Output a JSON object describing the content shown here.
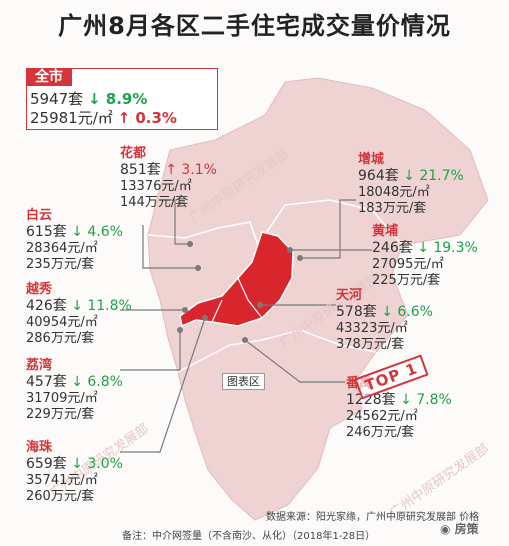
{
  "title": "广州8月各区二手住宅成交量价情况",
  "whole_city": {
    "name": "全市",
    "volume": "5947套",
    "volume_change": "↓ 8.9%",
    "price": "25981元/㎡",
    "price_change": "↑ 0.3%"
  },
  "districts": [
    {
      "key": "huadu",
      "name": "花都",
      "volume": "851套",
      "change": "↑ 3.1%",
      "price": "13376元/㎡",
      "total": "144万元/套"
    },
    {
      "key": "zengcheng",
      "name": "增城",
      "volume": "964套",
      "change": "↓ 21.7%",
      "price": "18048元/㎡",
      "total": "183万元/套"
    },
    {
      "key": "baiyun",
      "name": "白云",
      "volume": "615套",
      "change": "↓ 4.6%",
      "price": "28364元/㎡",
      "total": "235万元/套"
    },
    {
      "key": "huangpu",
      "name": "黄埔",
      "volume": "246套",
      "change": "↓ 19.3%",
      "price": "27095元/㎡",
      "total": "225万元/套"
    },
    {
      "key": "yuexiu",
      "name": "越秀",
      "volume": "426套",
      "change": "↓ 11.8%",
      "price": "40954元/㎡",
      "total": "286万元/套"
    },
    {
      "key": "tianhe",
      "name": "天河",
      "volume": "578套",
      "change": "↓ 6.6%",
      "price": "43323元/㎡",
      "total": "378万元/套"
    },
    {
      "key": "liwan",
      "name": "荔湾",
      "volume": "457套",
      "change": "↓ 6.8%",
      "price": "31709元/㎡",
      "total": "229万元/套"
    },
    {
      "key": "panyu",
      "name": "番禺",
      "volume": "1228套",
      "change": "↓ 7.8%",
      "price": "24562元/㎡",
      "total": "246万元/套"
    },
    {
      "key": "haizhu",
      "name": "海珠",
      "volume": "659套",
      "change": "↓ 3.0%",
      "price": "35741元/㎡",
      "total": "260万元/套"
    }
  ],
  "chart_area_label": "图表区",
  "stamp": "TOP 1",
  "source": "数据来源：阳光家缘，广州中原研究发展部",
  "source_tail": "价格",
  "note": "备注：中介网签量（不含南沙、从化）（2018年1-28日）",
  "watermark": "广州中原研究发展部",
  "brand": "房策",
  "colors": {
    "accent": "#d4343a",
    "down": "#1fa34a",
    "map_light": "#efd3d3",
    "map_core": "#d9262c"
  }
}
